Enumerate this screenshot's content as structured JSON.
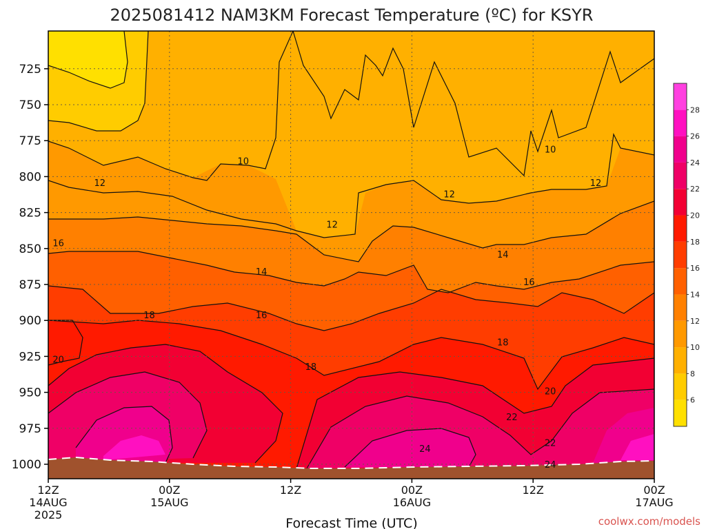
{
  "chart_data": {
    "type": "heatmap",
    "title": "2025081412 NAM3KM Forecast Temperature (ºC) for KSYR",
    "xlabel": "Forecast Time (UTC)",
    "credit": "coolwx.com/models",
    "y_axis": {
      "unit": "hPa",
      "ticks": [
        "725",
        "750",
        "775",
        "800",
        "825",
        "850",
        "875",
        "900",
        "925",
        "950",
        "975",
        "1000"
      ],
      "range": [
        1010,
        700
      ],
      "direction": "pressure decreases upward"
    },
    "x_axis": {
      "unit": "hours from 2025-08-14 12Z",
      "range": [
        0,
        60
      ],
      "ticks": [
        {
          "line1": "12Z",
          "line2": "14AUG",
          "line3": "2025"
        },
        {
          "line1": "00Z",
          "line2": "15AUG",
          "line3": ""
        },
        {
          "line1": "12Z",
          "line2": "",
          "line3": ""
        },
        {
          "line1": "00Z",
          "line2": "16AUG",
          "line3": ""
        },
        {
          "line1": "12Z",
          "line2": "",
          "line3": ""
        },
        {
          "line1": "00Z",
          "line2": "17AUG",
          "line3": ""
        }
      ]
    },
    "colorbar": {
      "labels": [
        "6",
        "8",
        "10",
        "12",
        "14",
        "16",
        "18",
        "20",
        "22",
        "24",
        "26",
        "28"
      ],
      "colors": [
        "#ffe000",
        "#ffcc00",
        "#ffb000",
        "#ff9900",
        "#ff8000",
        "#ff6000",
        "#ff3d00",
        "#ff1a00",
        "#f20033",
        "#ef0066",
        "#f0008c",
        "#ff10c0",
        "#ff40e0"
      ]
    },
    "contour_labels": [
      {
        "text": "10",
        "hour": 19.3,
        "p": 789
      },
      {
        "text": "10",
        "hour": 49.7,
        "p": 781
      },
      {
        "text": "12",
        "hour": 5.1,
        "p": 804
      },
      {
        "text": "12",
        "hour": 28.1,
        "p": 833
      },
      {
        "text": "12",
        "hour": 39.7,
        "p": 812
      },
      {
        "text": "12",
        "hour": 54.2,
        "p": 804
      },
      {
        "text": "14",
        "hour": 21.1,
        "p": 866
      },
      {
        "text": "14",
        "hour": 45.0,
        "p": 854
      },
      {
        "text": "16",
        "hour": 1.0,
        "p": 846
      },
      {
        "text": "16",
        "hour": 21.1,
        "p": 896
      },
      {
        "text": "16",
        "hour": 47.6,
        "p": 873
      },
      {
        "text": "18",
        "hour": 10.0,
        "p": 896
      },
      {
        "text": "18",
        "hour": 26.0,
        "p": 932
      },
      {
        "text": "18",
        "hour": 45.0,
        "p": 915
      },
      {
        "text": "20",
        "hour": 1.0,
        "p": 927
      },
      {
        "text": "20",
        "hour": 49.7,
        "p": 949
      },
      {
        "text": "22",
        "hour": 45.9,
        "p": 967
      },
      {
        "text": "22",
        "hour": 49.7,
        "p": 985
      },
      {
        "text": "24",
        "hour": 37.3,
        "p": 989
      },
      {
        "text": "24",
        "hour": 49.7,
        "p": 1000
      }
    ],
    "surface_pressure_hpa_approx": 1002,
    "grid": true,
    "legend": "right colorbar"
  }
}
